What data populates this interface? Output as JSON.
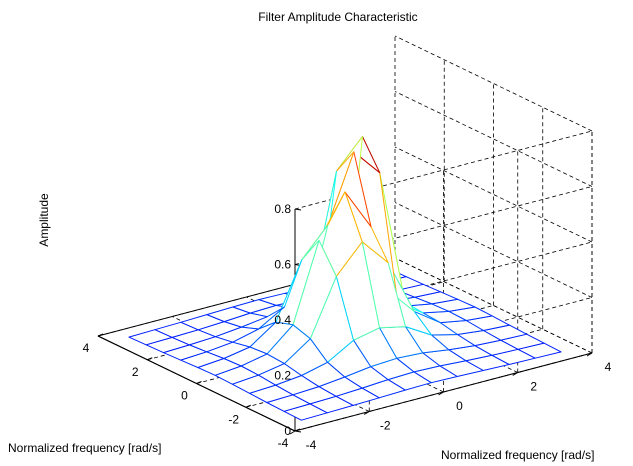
{
  "chart_data": {
    "type": "surface",
    "title": "Filter Amplitude Characteristic",
    "xlabel": "Normalized frequency [rad/s]",
    "ylabel": "Normalized frequency [rad/s]",
    "zlabel": "Amplitude",
    "xlim": [
      -4,
      4
    ],
    "ylim": [
      -4,
      4
    ],
    "zlim": [
      0,
      0.8
    ],
    "x_ticks": [
      "-4",
      "-2",
      "0",
      "2",
      "4"
    ],
    "y_ticks": [
      "-4",
      "-2",
      "0",
      "2",
      "4"
    ],
    "z_ticks": [
      "0",
      "0.2",
      "0.4",
      "0.6",
      "0.8"
    ],
    "x_tick_values": [
      -4,
      -2,
      0,
      2,
      4
    ],
    "y_tick_values": [
      -4,
      -2,
      0,
      2,
      4
    ],
    "z_tick_values": [
      0,
      0.2,
      0.4,
      0.6,
      0.8
    ],
    "grid": true,
    "colormap": "jet",
    "x": [
      -3.5,
      -2.8,
      -2.1,
      -1.4,
      -0.7,
      0,
      0.7,
      1.4,
      2.1,
      2.8,
      3.5
    ],
    "y": [
      -3.5,
      -2.8,
      -2.1,
      -1.4,
      -0.7,
      0,
      0.7,
      1.4,
      2.1,
      2.8,
      3.5
    ],
    "z": [
      [
        0.0,
        0.002,
        0.004,
        0.007,
        0.01,
        0.012,
        0.01,
        0.007,
        0.004,
        0.002,
        0.0
      ],
      [
        0.002,
        0.004,
        0.007,
        0.012,
        0.018,
        0.021,
        0.018,
        0.012,
        0.007,
        0.004,
        0.002
      ],
      [
        0.004,
        0.007,
        0.012,
        0.022,
        0.035,
        0.04,
        0.035,
        0.022,
        0.012,
        0.007,
        0.004
      ],
      [
        0.007,
        0.012,
        0.022,
        0.045,
        0.1,
        0.12,
        0.1,
        0.045,
        0.022,
        0.012,
        0.007
      ],
      [
        0.01,
        0.018,
        0.035,
        0.1,
        0.3,
        0.4,
        0.3,
        0.1,
        0.035,
        0.018,
        0.01
      ],
      [
        0.012,
        0.021,
        0.04,
        0.12,
        0.4,
        0.55,
        0.4,
        0.12,
        0.04,
        0.021,
        0.012
      ],
      [
        0.01,
        0.018,
        0.035,
        0.1,
        0.3,
        0.4,
        0.64,
        0.54,
        0.035,
        0.018,
        0.01
      ],
      [
        0.007,
        0.012,
        0.022,
        0.045,
        0.1,
        0.12,
        0.54,
        0.64,
        0.022,
        0.012,
        0.007
      ],
      [
        0.004,
        0.007,
        0.012,
        0.022,
        0.035,
        0.04,
        0.035,
        0.022,
        0.012,
        0.007,
        0.004
      ],
      [
        0.002,
        0.004,
        0.007,
        0.012,
        0.018,
        0.021,
        0.018,
        0.012,
        0.007,
        0.004,
        0.002
      ],
      [
        0.0,
        0.002,
        0.004,
        0.007,
        0.01,
        0.012,
        0.01,
        0.007,
        0.004,
        0.002,
        0.0
      ]
    ]
  }
}
